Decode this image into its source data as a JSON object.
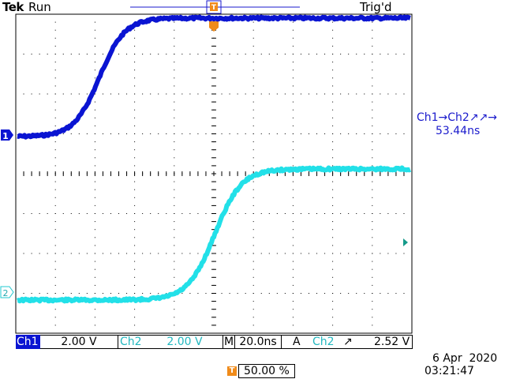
{
  "header": {
    "brand": "Tek",
    "run_state": "Run",
    "trigger_status": "Trig'd"
  },
  "measurement": {
    "label": "Ch1→Ch2↗↗→",
    "value": "53.44ns"
  },
  "markers": {
    "ch1": "1",
    "ch2": "2",
    "trigger_point": "T"
  },
  "status_bar": {
    "ch1_label": "Ch1",
    "ch1_scale": "2.00 V",
    "ch2_label": "Ch2",
    "ch2_scale": "2.00 V",
    "timebase_prefix": "M",
    "timebase": "20.0ns",
    "trigger_mode": "A",
    "trigger_source": "Ch2",
    "trigger_slope": "↗",
    "trigger_level": "2.52 V"
  },
  "footer": {
    "trigger_position_icon": "T",
    "trigger_position": "50.00 %",
    "date": "6 Apr  2020",
    "time": "03:21:47"
  },
  "colors": {
    "ch1": "#0a14d2",
    "ch2": "#22e0e8",
    "trigger": "#f08b1a",
    "measure_text": "#1a1acc"
  }
}
